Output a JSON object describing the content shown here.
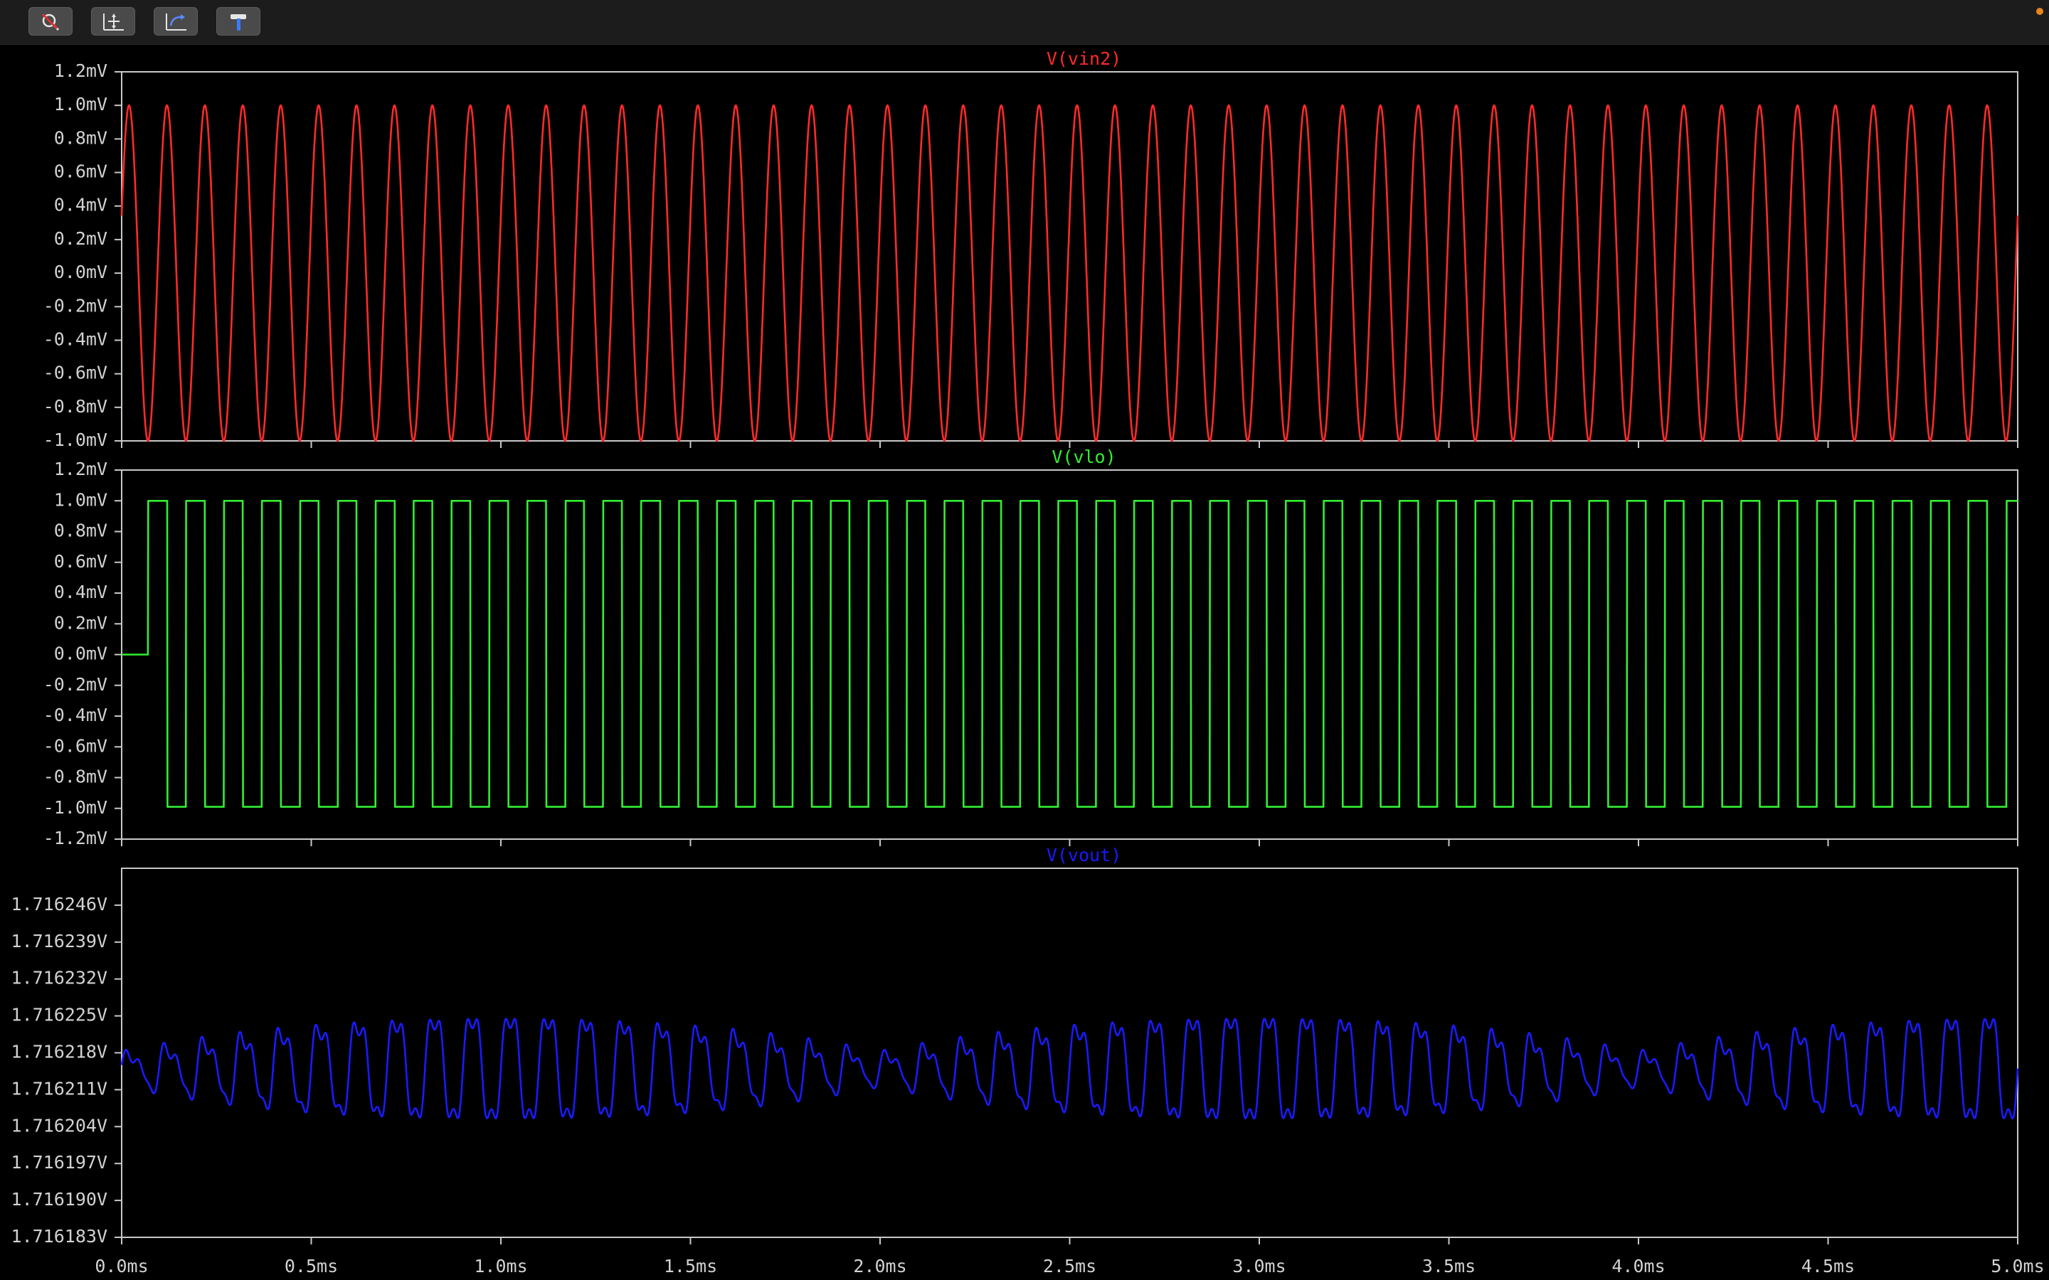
{
  "toolbar": {
    "buttons": [
      {
        "icon": "zoom-cancel-icon"
      },
      {
        "icon": "autorange-icon"
      },
      {
        "icon": "undo-zoom-icon"
      },
      {
        "icon": "hammer-icon"
      }
    ],
    "status_dot_color": "#e8841a"
  },
  "colors": {
    "background": "#000000",
    "axis": "#c8c8c8",
    "label": "#d2d2d2",
    "vin2": "#ff2a2a",
    "vlo": "#33ee33",
    "vout": "#1a1aff"
  },
  "x_axis": {
    "unit": "ms",
    "min": 0.0,
    "max": 5.0,
    "ticks": [
      "0.0ms",
      "0.5ms",
      "1.0ms",
      "1.5ms",
      "2.0ms",
      "2.5ms",
      "3.0ms",
      "3.5ms",
      "4.0ms",
      "4.5ms",
      "5.0ms"
    ]
  },
  "chart_data": [
    {
      "type": "line",
      "title": "V(vin2)",
      "series": [
        {
          "name": "V(vin2)",
          "color": "#ff2a2a",
          "waveform": "sine",
          "amplitude_mV": 1.0,
          "offset_mV": 0.0,
          "frequency_kHz": 10.0
        }
      ],
      "x": {
        "min": 0.0,
        "max": 5.0,
        "unit": "ms"
      },
      "ylim": [
        -1.0,
        1.2
      ],
      "y_ticks": [
        "1.2mV",
        "1.0mV",
        "0.8mV",
        "0.6mV",
        "0.4mV",
        "0.2mV",
        "0.0mV",
        "-0.2mV",
        "-0.4mV",
        "-0.6mV",
        "-0.8mV",
        "-1.0mV"
      ]
    },
    {
      "type": "line",
      "title": "V(vlo)",
      "series": [
        {
          "name": "V(vlo)",
          "color": "#33ee33",
          "waveform": "square",
          "high_mV": 1.0,
          "low_mV": -0.99,
          "initial_mV": 0.0,
          "start_ms": 0.07,
          "frequency_kHz": 10.0
        }
      ],
      "x": {
        "min": 0.0,
        "max": 5.0,
        "unit": "ms"
      },
      "ylim": [
        -1.2,
        1.2
      ],
      "y_ticks": [
        "1.2mV",
        "1.0mV",
        "0.8mV",
        "0.6mV",
        "0.4mV",
        "0.2mV",
        "0.0mV",
        "-0.2mV",
        "-0.4mV",
        "-0.6mV",
        "-0.8mV",
        "-1.0mV",
        "-1.2mV"
      ]
    },
    {
      "type": "line",
      "title": "V(vout)",
      "series": [
        {
          "name": "V(vout)",
          "color": "#1a1aff",
          "center_V": 1.716215,
          "envelope_amplitude_V": 1.4e-05,
          "beat_period_ms": 2.0,
          "frequency_kHz": 10.0
        }
      ],
      "x": {
        "min": 0.0,
        "max": 5.0,
        "unit": "ms"
      },
      "ylim": [
        1.716183,
        1.716253
      ],
      "y_ticks": [
        "1.716246V",
        "1.716239V",
        "1.716232V",
        "1.716225V",
        "1.716218V",
        "1.716211V",
        "1.716204V",
        "1.716197V",
        "1.716190V",
        "1.716183V"
      ]
    }
  ]
}
